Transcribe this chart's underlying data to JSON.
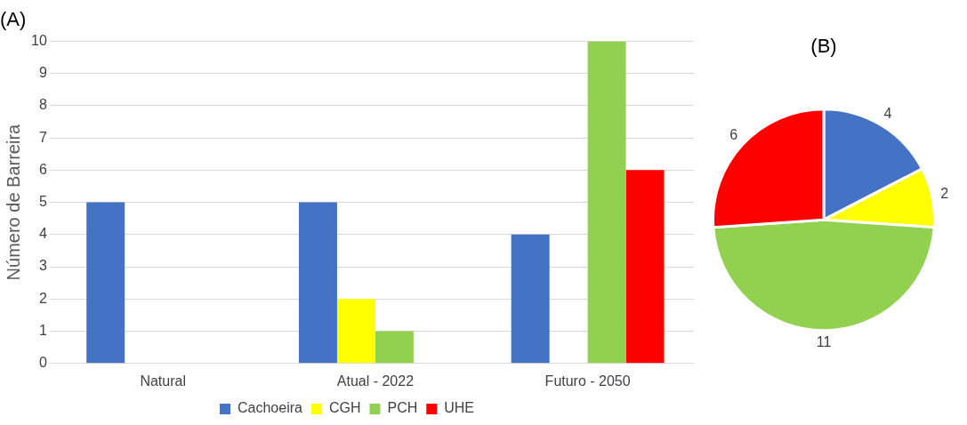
{
  "chart_data": [
    {
      "type": "bar",
      "title": "(A)",
      "ylabel": "Número de Barreira",
      "categories": [
        "Natural",
        "Atual - 2022",
        "Futuro - 2050"
      ],
      "series": [
        {
          "name": "Cachoeira",
          "color": "#4472c4",
          "values": [
            5,
            5,
            4
          ]
        },
        {
          "name": "CGH",
          "color": "#ffff00",
          "values": [
            0,
            2,
            0
          ]
        },
        {
          "name": "PCH",
          "color": "#92d050",
          "values": [
            0,
            1,
            10
          ]
        },
        {
          "name": "UHE",
          "color": "#ff0000",
          "values": [
            0,
            0,
            6
          ]
        }
      ],
      "ylim": [
        0,
        10
      ],
      "yticks": [
        0,
        1,
        2,
        3,
        4,
        5,
        6,
        7,
        8,
        9,
        10
      ],
      "grid": "y",
      "legend": "bottom"
    },
    {
      "type": "pie",
      "title": "(B)",
      "categories": [
        null,
        null,
        null,
        null
      ],
      "values": [
        4,
        2,
        11,
        6
      ],
      "colors": [
        "#4472c4",
        "#ffff00",
        "#92d050",
        "#ff0000"
      ],
      "data_labels": true
    }
  ]
}
